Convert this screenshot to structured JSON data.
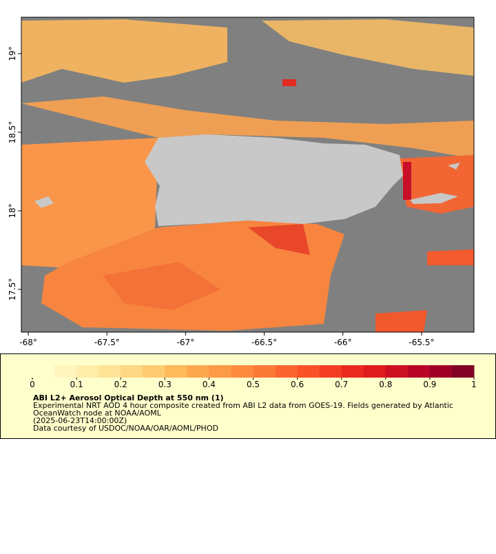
{
  "map": {
    "xlim": [
      -68.044,
      -65.167
    ],
    "ylim": [
      17.228,
      19.232
    ],
    "xticks": [
      {
        "value": -68,
        "label": "-68°"
      },
      {
        "value": -67.5,
        "label": "-67.5°"
      },
      {
        "value": -67,
        "label": "-67°"
      },
      {
        "value": -66.5,
        "label": "-66.5°"
      },
      {
        "value": -66,
        "label": "-66°"
      },
      {
        "value": -65.5,
        "label": "-65.5°"
      }
    ],
    "yticks": [
      {
        "value": 17.5,
        "label": "17.5°"
      },
      {
        "value": 18,
        "label": "18°"
      },
      {
        "value": 18.5,
        "label": "18.5°"
      },
      {
        "value": 19,
        "label": "19°"
      }
    ]
  },
  "colorbar": {
    "lim": [
      0,
      1
    ],
    "ticks": [
      0,
      0.1,
      0.2,
      0.3,
      0.4,
      0.5,
      0.6,
      0.7,
      0.8,
      0.9,
      1
    ],
    "colors": [
      "#ffffcc",
      "#fff5bd",
      "#ffedaa",
      "#fee497",
      "#fed884",
      "#fecb70",
      "#feb95b",
      "#fda84f",
      "#fd9a47",
      "#fd8b3f",
      "#fc7a38",
      "#fc6530",
      "#fa5129",
      "#f43d24",
      "#ea2a20",
      "#df1b1d",
      "#cc0f21",
      "#b90526",
      "#a10026",
      "#800026"
    ]
  },
  "caption": {
    "title": "ABI L2+ Aerosol Optical Depth at 550 nm (1)",
    "lines": [
      "Experimental NRT AOD 4 hour composite created from ABI L2 data from GOES-19. Fields generated by Atlantic",
      "OceanWatch node at NOAA/AOML",
      "(2025-06-23T14:00:00Z)",
      "Data courtesy of USDOC/NOAA/OAR/AOML/PHOD"
    ]
  }
}
